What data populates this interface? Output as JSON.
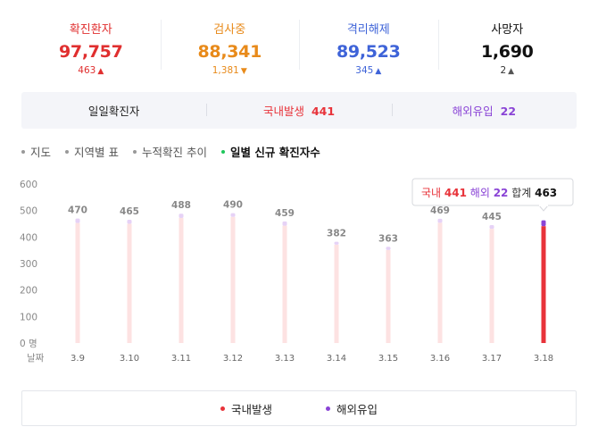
{
  "stats": [
    {
      "label": "확진환자",
      "value": "97,757",
      "delta": "463",
      "arrow": "up",
      "color": "#e02f2f",
      "arrow_color": "#e02f2f",
      "delta_color": "#e02f2f"
    },
    {
      "label": "검사중",
      "value": "88,341",
      "delta": "1,381",
      "arrow": "down",
      "color": "#e88a1a",
      "arrow_color": "#e88a1a",
      "delta_color": "#e88a1a"
    },
    {
      "label": "격리해제",
      "value": "89,523",
      "delta": "345",
      "arrow": "up",
      "color": "#3e63d8",
      "arrow_color": "#3e63d8",
      "delta_color": "#3e63d8"
    },
    {
      "label": "사망자",
      "value": "1,690",
      "delta": "2",
      "arrow": "up",
      "color": "#111111",
      "arrow_color": "#555555",
      "delta_color": "#333333"
    }
  ],
  "breakdown": {
    "daily_label": "일일확진자",
    "domestic_label": "국내발생",
    "domestic_value": "441",
    "overseas_label": "해외유입",
    "overseas_value": "22"
  },
  "tabs": [
    {
      "label": "지도",
      "active": false
    },
    {
      "label": "지역별 표",
      "active": false
    },
    {
      "label": "누적확진 추이",
      "active": false
    },
    {
      "label": "일별 신규 확진자수",
      "active": true
    }
  ],
  "colors": {
    "domestic": "#e8333a",
    "overseas": "#8a44d6",
    "bar_faded": "#fde2e2",
    "bar_top_faded": "#e6d2f6",
    "dot_active": "#1ec65b"
  },
  "chart_data": {
    "type": "bar",
    "stacked": true,
    "categories": [
      "3.9",
      "3.10",
      "3.11",
      "3.12",
      "3.13",
      "3.14",
      "3.15",
      "3.16",
      "3.17",
      "3.18"
    ],
    "totals": [
      470,
      465,
      488,
      490,
      459,
      382,
      363,
      469,
      445,
      463
    ],
    "series": [
      {
        "name": "국내발생",
        "values": [
          453,
          450,
          472,
          476,
          443,
          371,
          351,
          454,
          431,
          441
        ]
      },
      {
        "name": "해외유입",
        "values": [
          17,
          15,
          16,
          14,
          16,
          11,
          12,
          15,
          14,
          22
        ]
      }
    ],
    "y_ticks": [
      "600",
      "500",
      "400",
      "300",
      "200",
      "100",
      "0 명"
    ],
    "ylim": [
      0,
      600
    ],
    "x_axis_label": "날짜",
    "highlight_index": 9,
    "tooltip": {
      "domestic_label": "국내",
      "domestic_value": "441",
      "overseas_label": "해외",
      "overseas_value": "22",
      "total_label": "합계",
      "total_value": "463"
    }
  },
  "legend": [
    {
      "label": "국내발생",
      "color": "#e8333a"
    },
    {
      "label": "해외유입",
      "color": "#8a44d6"
    }
  ]
}
